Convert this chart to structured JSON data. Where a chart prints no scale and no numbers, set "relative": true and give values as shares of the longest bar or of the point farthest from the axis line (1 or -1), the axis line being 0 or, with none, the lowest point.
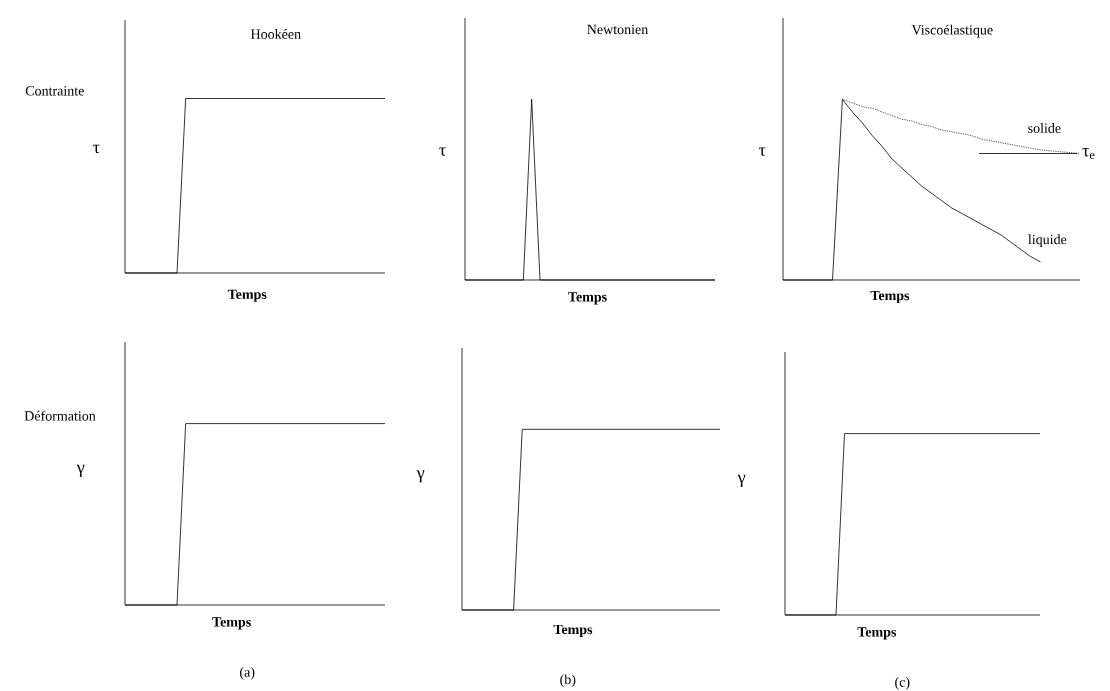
{
  "chart_data": [
    {
      "type": "line",
      "relative": true,
      "title": "Hookéen",
      "xlabel": "Temps",
      "ylabel": "τ",
      "annotations": [
        "Contrainte"
      ],
      "categories": [
        null,
        null,
        null,
        null,
        null,
        null,
        null,
        null,
        null,
        null,
        null,
        null,
        null,
        null,
        null,
        null,
        null,
        null,
        null,
        null,
        null,
        null,
        null,
        null,
        null,
        null,
        null,
        null,
        null,
        null,
        null
      ],
      "series": [
        {
          "color": "#000000",
          "values": [
            0,
            0,
            0,
            0,
            0,
            0,
            0,
            1,
            1,
            1,
            1,
            1,
            1,
            1,
            1,
            1,
            1,
            1,
            1,
            1,
            1,
            1,
            1,
            1,
            1,
            1,
            1,
            1,
            1,
            1,
            1
          ]
        }
      ]
    },
    {
      "type": "line",
      "relative": true,
      "title": "Newtonien",
      "xlabel": "Temps",
      "ylabel": "τ",
      "categories": [
        null,
        null,
        null,
        null,
        null,
        null,
        null,
        null,
        null,
        null,
        null,
        null,
        null,
        null,
        null,
        null,
        null,
        null,
        null,
        null,
        null,
        null,
        null,
        null,
        null,
        null,
        null,
        null,
        null,
        null,
        null
      ],
      "series": [
        {
          "color": "#000000",
          "values": [
            0,
            0,
            0,
            0,
            0,
            0,
            0,
            0,
            1,
            0,
            0,
            0,
            0,
            0,
            0,
            0,
            0,
            0,
            0,
            0,
            0,
            0,
            0,
            0,
            0,
            0,
            0,
            0,
            0,
            0,
            0
          ]
        }
      ]
    },
    {
      "type": "line",
      "relative": true,
      "title": "Viscoélastique",
      "xlabel": "Temps",
      "ylabel": "τ",
      "categories": [
        null,
        null,
        null,
        null,
        null,
        null,
        null,
        null,
        null,
        null,
        null,
        null,
        null,
        null,
        null,
        null,
        null,
        null,
        null,
        null,
        null,
        null,
        null,
        null,
        null,
        null,
        null,
        null,
        null,
        null,
        null
      ],
      "ref_lines": [
        {
          "axis": "y",
          "value": 0.7,
          "label": "τ$_{e}$"
        }
      ],
      "series": [
        {
          "name": "solide",
          "color": "#000000",
          "line_style": "dotted",
          "values": [
            null,
            null,
            null,
            null,
            null,
            null,
            1,
            0.98,
            0.96,
            0.95,
            0.93,
            0.91,
            0.89,
            0.88,
            0.86,
            0.85,
            0.83,
            0.82,
            0.81,
            0.8,
            0.78,
            0.77,
            0.76,
            0.75,
            0.74,
            0.73,
            0.72,
            0.715,
            0.71,
            0.705,
            0.7
          ]
        },
        {
          "name": "liquide",
          "color": "#000000",
          "line_style": "solid",
          "values": [
            0,
            0,
            0,
            0,
            0,
            0,
            1,
            0.93,
            0.87,
            0.8,
            0.74,
            0.67,
            0.62,
            0.57,
            0.52,
            0.48,
            0.44,
            0.4,
            0.37,
            0.34,
            0.31,
            0.28,
            0.25,
            0.21,
            0.17,
            0.13,
            0.1,
            null,
            null,
            null,
            null
          ]
        }
      ]
    },
    {
      "type": "line",
      "relative": true,
      "xlabel": "Temps",
      "ylabel": "γ",
      "annotations": [
        "Déformation",
        "(a)"
      ],
      "categories": [
        null,
        null,
        null,
        null,
        null,
        null,
        null,
        null,
        null,
        null,
        null,
        null,
        null,
        null,
        null,
        null,
        null,
        null,
        null,
        null,
        null,
        null,
        null,
        null,
        null,
        null,
        null,
        null,
        null,
        null,
        null
      ],
      "series": [
        {
          "color": "#000000",
          "values": [
            0,
            0,
            0,
            0,
            0,
            0,
            0,
            1,
            1,
            1,
            1,
            1,
            1,
            1,
            1,
            1,
            1,
            1,
            1,
            1,
            1,
            1,
            1,
            1,
            1,
            1,
            1,
            1,
            1,
            1,
            1
          ]
        }
      ]
    },
    {
      "type": "line",
      "relative": true,
      "xlabel": "Temps",
      "ylabel": "γ",
      "annotations": [
        "(b)"
      ],
      "categories": [
        null,
        null,
        null,
        null,
        null,
        null,
        null,
        null,
        null,
        null,
        null,
        null,
        null,
        null,
        null,
        null,
        null,
        null,
        null,
        null,
        null,
        null,
        null,
        null,
        null,
        null,
        null,
        null,
        null,
        null,
        null
      ],
      "series": [
        {
          "color": "#000000",
          "values": [
            0,
            0,
            0,
            0,
            0,
            0,
            0,
            1,
            1,
            1,
            1,
            1,
            1,
            1,
            1,
            1,
            1,
            1,
            1,
            1,
            1,
            1,
            1,
            1,
            1,
            1,
            1,
            1,
            1,
            1,
            1
          ]
        }
      ]
    },
    {
      "type": "line",
      "relative": true,
      "xlabel": "Temps",
      "ylabel": "γ",
      "annotations": [
        "(c)"
      ],
      "categories": [
        null,
        null,
        null,
        null,
        null,
        null,
        null,
        null,
        null,
        null,
        null,
        null,
        null,
        null,
        null,
        null,
        null,
        null,
        null,
        null,
        null,
        null,
        null,
        null,
        null,
        null,
        null,
        null,
        null,
        null,
        null
      ],
      "series": [
        {
          "color": "#000000",
          "values": [
            0,
            0,
            0,
            0,
            0,
            0,
            0,
            1,
            1,
            1,
            1,
            1,
            1,
            1,
            1,
            1,
            1,
            1,
            1,
            1,
            1,
            1,
            1,
            1,
            1,
            1,
            1,
            1,
            1,
            1,
            1
          ]
        }
      ]
    }
  ]
}
